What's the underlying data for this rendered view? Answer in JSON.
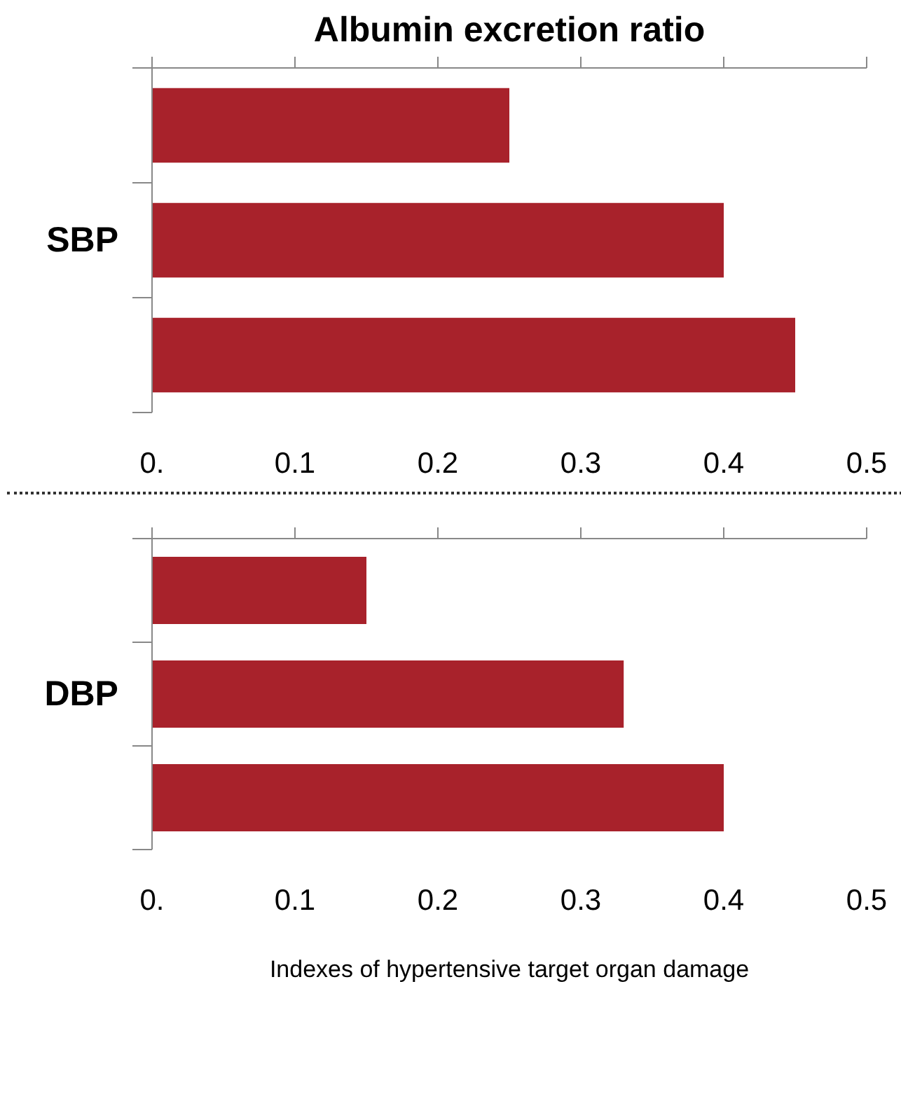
{
  "chart_data": [
    {
      "type": "bar",
      "orientation": "horizontal",
      "title": "Albumin excretion ratio",
      "ylabel": "SBP",
      "categories": [
        null,
        null,
        null
      ],
      "values": [
        0.25,
        0.4,
        0.45
      ],
      "color": "#a8222b",
      "xlim": [
        0,
        0.5
      ],
      "xticks": [
        {
          "value": 0,
          "label": "0."
        },
        0.1,
        0.2,
        0.3,
        0.4,
        0.5
      ]
    },
    {
      "type": "bar",
      "orientation": "horizontal",
      "ylabel": "DBP",
      "xlabel": "Indexes of hypertensive target organ damage",
      "categories": [
        null,
        null,
        null
      ],
      "values": [
        0.15,
        0.33,
        0.4
      ],
      "color": "#a8222b",
      "xlim": [
        0,
        0.5
      ],
      "xticks": [
        {
          "value": 0,
          "label": "0."
        },
        0.1,
        0.2,
        0.3,
        0.4,
        0.5
      ]
    }
  ]
}
